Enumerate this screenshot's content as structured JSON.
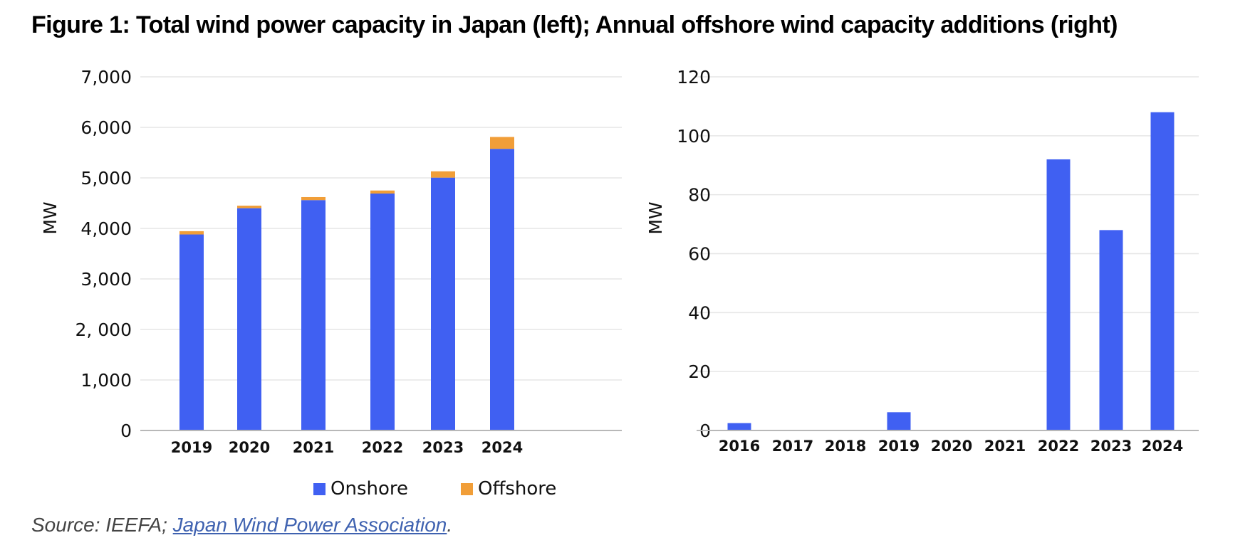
{
  "figure": {
    "title": "Figure 1: Total wind power capacity in Japan (left); Annual offshore wind capacity additions (right)",
    "source_prefix": "Source: IEEFA; ",
    "source_link": "Japan Wind Power Association",
    "source_suffix": "."
  },
  "colors": {
    "onshore": "#4060f2",
    "offshore": "#f19e38",
    "grid": "#e6e6e6",
    "axis": "#b8b8b8"
  },
  "chart_data": [
    {
      "type": "bar",
      "stacked": true,
      "title": "Total wind power capacity in Japan",
      "xlabel": "",
      "ylabel": "MW",
      "ylim": [
        0,
        7000
      ],
      "yticks": [
        0,
        1000,
        2000,
        3000,
        4000,
        5000,
        6000,
        7000
      ],
      "ytick_labels": [
        "0",
        "1,000",
        "2, 000",
        "3,000",
        "4,000",
        "5,000",
        "6,000",
        "7,000"
      ],
      "categories": [
        "2019",
        "2020",
        "2021",
        "2022",
        "2023",
        "2024"
      ],
      "series": [
        {
          "name": "Onshore",
          "values": [
            3880,
            4400,
            4560,
            4690,
            5005,
            5575
          ]
        },
        {
          "name": "Offshore",
          "values": [
            65,
            50,
            60,
            60,
            125,
            235
          ]
        }
      ],
      "grid": true,
      "legend": [
        "Onshore",
        "Offshore"
      ],
      "legend_position": "bottom"
    },
    {
      "type": "bar",
      "title": "Annual offshore wind capacity additions",
      "xlabel": "",
      "ylabel": "MW",
      "ylim": [
        0,
        120
      ],
      "yticks": [
        0,
        20,
        40,
        60,
        80,
        100,
        120
      ],
      "ytick_labels": [
        "0",
        "20",
        "40",
        "60",
        "80",
        "100",
        "120"
      ],
      "categories": [
        "2016",
        "2017",
        "2018",
        "2019",
        "2020",
        "2021",
        "2022",
        "2023",
        "2024"
      ],
      "series": [
        {
          "name": "Offshore",
          "values": [
            2.5,
            0,
            0,
            6.2,
            0,
            0,
            92,
            68,
            108
          ]
        }
      ],
      "grid": true
    }
  ]
}
